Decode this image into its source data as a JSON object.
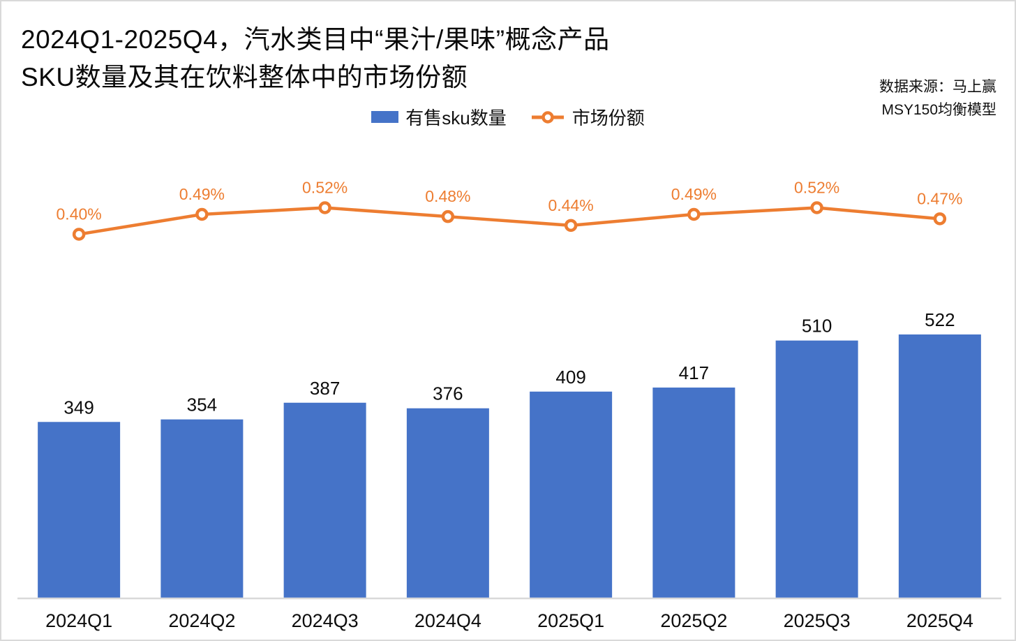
{
  "header": {
    "title_line1": "2024Q1-2025Q4，汽水类目中“果汁/果味”概念产品",
    "title_line2": "SKU数量及其在饮料整体中的市场份额",
    "source_line1": "数据来源：马上赢",
    "source_line2": "MSY150均衡模型"
  },
  "legend": {
    "bar_label": "有售sku数量",
    "line_label": "市场份额",
    "position": "top-center"
  },
  "colors": {
    "bar_fill": "#4573C8",
    "line_stroke": "#ED7D31",
    "line_label_text": "#ED7D31",
    "axis_line": "#D9D9D9",
    "value_label_text": "#0d0d0d",
    "tick_label_text": "#0d0d0d"
  },
  "chart_data": {
    "type": "bar",
    "subtype": "bar+line combo, dual axis",
    "title": "2024Q1-2025Q4，汽水类目中“果汁/果味”概念产品SKU数量及其在饮料整体中的市场份额",
    "categories": [
      "2024Q1",
      "2024Q2",
      "2024Q3",
      "2024Q4",
      "2025Q1",
      "2025Q2",
      "2025Q3",
      "2025Q4"
    ],
    "series": [
      {
        "name": "有售sku数量",
        "type": "bar",
        "axis": "primary",
        "values": [
          349,
          354,
          387,
          376,
          409,
          417,
          510,
          522
        ],
        "data_labels": [
          "349",
          "354",
          "387",
          "376",
          "409",
          "417",
          "510",
          "522"
        ]
      },
      {
        "name": "市场份额",
        "type": "line",
        "axis": "secondary",
        "unit": "%",
        "values": [
          0.4,
          0.49,
          0.52,
          0.48,
          0.44,
          0.49,
          0.52,
          0.47
        ],
        "data_labels": [
          "0.40%",
          "0.49%",
          "0.52%",
          "0.48%",
          "0.44%",
          "0.49%",
          "0.52%",
          "0.47%"
        ]
      }
    ],
    "xlabel": "",
    "ylabel": "",
    "axis_tick_labels_visible": false,
    "gridlines": false,
    "data_labels": true,
    "legend_position": "top-center"
  }
}
